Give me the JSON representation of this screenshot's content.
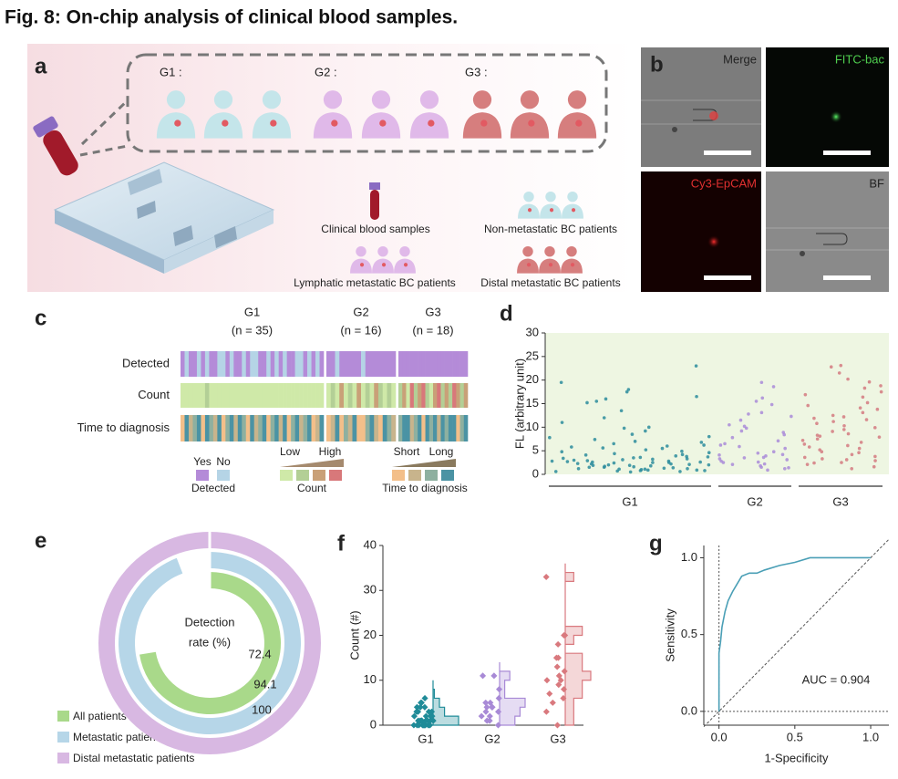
{
  "title": "Fig. 8: On-chip analysis of clinical blood samples.",
  "panel_a": {
    "label": "a",
    "groups": [
      "G1 :",
      "G2 :",
      "G3 :"
    ],
    "legend": [
      "Clinical blood samples",
      "Non-metastatic BC patients",
      "Lymphatic metastatic BC patients",
      "Distal metastatic BC patients"
    ]
  },
  "panel_b": {
    "label": "b",
    "channels": [
      "Merge",
      "FITC-bac",
      "Cy3-EpCAM",
      "BF"
    ]
  },
  "panel_c": {
    "label": "c",
    "groups": [
      {
        "name": "G1",
        "n": "(n = 35)"
      },
      {
        "name": "G2",
        "n": "(n = 16)"
      },
      {
        "name": "G3",
        "n": "(n = 18)"
      }
    ],
    "rows": [
      "Detected",
      "Count",
      "Time to diagnosis"
    ],
    "detected_colors": [
      "#b5d4e6",
      "#b48bd8"
    ],
    "count_colors": [
      "#cfe9a8",
      "#b3cf96",
      "#c9a078",
      "#d8787a"
    ],
    "time_colors": [
      "#f3bf8a",
      "#c8b48c",
      "#8eb0a0",
      "#4b93a4"
    ],
    "detected": [
      [
        1,
        0,
        1,
        1,
        0,
        1,
        0,
        1,
        1,
        0,
        0,
        1,
        0,
        1,
        1,
        0,
        1,
        0,
        0,
        1,
        1,
        0,
        1,
        0,
        1,
        0,
        1,
        1,
        0,
        0,
        1,
        0,
        1,
        0,
        1
      ],
      [
        1,
        1,
        0,
        1,
        1,
        1,
        1,
        1,
        0,
        1,
        1,
        1,
        1,
        1,
        1,
        1
      ],
      [
        1,
        1,
        1,
        1,
        1,
        1,
        1,
        1,
        1,
        1,
        1,
        1,
        1,
        1,
        1,
        1,
        1,
        1
      ]
    ],
    "count": [
      [
        0,
        0,
        0,
        0,
        0,
        0,
        1,
        0,
        0,
        0,
        0,
        0,
        0,
        0,
        0,
        0,
        0,
        0,
        0,
        0,
        0,
        0,
        0,
        0,
        0,
        0,
        0,
        0,
        0,
        0,
        0,
        0,
        0,
        0,
        0
      ],
      [
        0,
        1,
        0,
        2,
        0,
        1,
        0,
        2,
        0,
        1,
        0,
        2,
        1,
        0,
        1,
        0
      ],
      [
        1,
        2,
        0,
        3,
        1,
        2,
        3,
        1,
        0,
        2,
        3,
        1,
        2,
        1,
        3,
        2,
        1,
        2
      ]
    ],
    "time": [
      [
        0,
        3,
        1,
        2,
        3,
        0,
        3,
        2,
        1,
        3,
        0,
        2,
        3,
        1,
        3,
        2,
        0,
        3,
        1,
        2,
        3,
        0,
        2,
        3,
        1,
        3,
        0,
        2,
        3,
        1,
        2,
        3,
        0,
        1,
        3
      ],
      [
        0,
        1,
        3,
        0,
        2,
        1,
        3,
        0,
        0,
        2,
        3,
        1,
        0,
        3,
        2,
        1
      ],
      [
        2,
        3,
        3,
        1,
        2,
        3,
        0,
        3,
        2,
        3,
        1,
        3,
        2,
        3,
        3,
        0,
        2,
        3
      ]
    ],
    "legend": {
      "detected": {
        "title": "Detected",
        "items": [
          "Yes",
          "No"
        ]
      },
      "count": {
        "title": "Count",
        "low": "Low",
        "high": "High"
      },
      "time": {
        "title": "Time to diagnosis",
        "short": "Short",
        "long": "Long"
      }
    }
  },
  "chart_data": [
    {
      "type": "scatter",
      "label": "d",
      "y_label": "FL (arbitrary unit)",
      "background": "#eef6e2",
      "ylim": [
        0,
        30
      ],
      "yticks": [
        0,
        5,
        10,
        15,
        20,
        25,
        30
      ],
      "series": [
        {
          "name": "G1",
          "color": "#2b8c9c",
          "values": [
            1.2,
            2.5,
            0.8,
            3.1,
            1.9,
            4.2,
            2.2,
            0.5,
            1.6,
            3.5,
            2.8,
            1.1,
            0.9,
            2.4,
            3.8,
            1.5,
            0.7,
            2.9,
            4.6,
            1.3,
            2.1,
            3.3,
            0.6,
            1.8,
            2.6,
            4.1,
            1.4,
            3.0,
            0.9,
            2.3,
            1.7,
            3.6,
            2.0,
            4.4,
            1.0,
            2.7,
            3.2,
            0.8,
            1.5,
            2.2,
            3.9,
            1.2,
            2.5,
            4.8,
            1.9,
            0.6,
            2.8,
            3.4,
            1.1,
            2.0,
            23,
            17.5,
            16,
            18,
            19.5,
            16.5,
            15.5,
            12,
            10,
            9.2,
            8.5,
            7.4,
            6.8,
            6.2,
            5.8,
            5.5,
            11,
            8,
            7,
            6.5,
            5.2,
            13.5,
            9.8,
            7.8,
            6,
            5.6,
            15.2,
            4.9,
            3.7,
            2.6
          ]
        },
        {
          "name": "G2",
          "color": "#a98bd8",
          "values": [
            1.5,
            2.8,
            3.5,
            4.2,
            2.1,
            1.2,
            3.9,
            4.8,
            2.5,
            0.9,
            3.1,
            1.8,
            4.5,
            2.2,
            3.6,
            1.4,
            5.5,
            6.2,
            7.1,
            8.4,
            9.2,
            10.5,
            12.3,
            13.1,
            14.8,
            16.2,
            18.6,
            19.5,
            11.5,
            7.8,
            6.5,
            9.8,
            8.9,
            12.8,
            5.9,
            4.1,
            3.3,
            2.6,
            15.5,
            10.2
          ]
        },
        {
          "name": "G3",
          "color": "#d47a80",
          "values": [
            1.2,
            2.5,
            3.8,
            4.6,
            2.1,
            3.3,
            1.6,
            4.2,
            2.9,
            3.6,
            5.8,
            6.4,
            7.2,
            8.1,
            9.5,
            10.3,
            11.2,
            12.5,
            13.8,
            14.6,
            15.2,
            16.4,
            17.5,
            18.3,
            19.6,
            20.2,
            22.8,
            23.1,
            21.5,
            6.8,
            7.5,
            8.6,
            9.1,
            10.8,
            11.6,
            12.2,
            13.1,
            5.2,
            4.8,
            6.1,
            7.9,
            9.9,
            14.1,
            16.9,
            18.8,
            3.1,
            2.4,
            5.5,
            8.3,
            11.9
          ]
        }
      ]
    },
    {
      "type": "donut",
      "label": "e",
      "center_text": [
        "Detection",
        "rate (%)"
      ],
      "series": [
        {
          "name": "All patients",
          "color": "#a9d98a",
          "value": 72.4
        },
        {
          "name": "Metastatic patients",
          "color": "#b6d6e8",
          "value": 94.1
        },
        {
          "name": "Distal metastatic patients",
          "color": "#d8b8e2",
          "value": 100
        }
      ]
    },
    {
      "type": "strip",
      "label": "f",
      "y_label": "Count (#)",
      "ylim": [
        0,
        40
      ],
      "yticks": [
        0,
        10,
        20,
        30,
        40
      ],
      "series": [
        {
          "name": "G1",
          "color": "#1f8b98",
          "values": [
            0,
            0,
            0,
            0,
            0,
            0,
            0,
            0,
            0,
            0,
            0,
            0,
            1,
            1,
            1,
            1,
            1,
            1,
            1,
            1,
            2,
            2,
            2,
            2,
            2,
            3,
            3,
            3,
            3,
            4,
            4,
            4,
            5,
            5,
            6
          ]
        },
        {
          "name": "G2",
          "color": "#a88ad6",
          "values": [
            0,
            1,
            1,
            2,
            2,
            3,
            3,
            4,
            4,
            4,
            5,
            5,
            6,
            8,
            11,
            11
          ]
        },
        {
          "name": "G3",
          "color": "#d9797e",
          "values": [
            0,
            3,
            5,
            6,
            7,
            8,
            9,
            10,
            10,
            11,
            12,
            13,
            15,
            15,
            18,
            20,
            20,
            33
          ]
        }
      ]
    },
    {
      "type": "line",
      "label": "g",
      "x_label": "1-Specificity",
      "y_label": "Sensitivity",
      "annotation": "AUC = 0.904",
      "color": "#4a9fb6",
      "xlim": [
        -0.1,
        1.12
      ],
      "ylim": [
        -0.09,
        1.08
      ],
      "xticks": [
        {
          "value": 0,
          "label": "0.0"
        },
        0.5,
        {
          "value": 1,
          "label": "1.0"
        }
      ],
      "yticks": [
        {
          "value": 0,
          "label": "0.0"
        },
        0.5,
        {
          "value": 1,
          "label": "1.0"
        }
      ],
      "x": [
        0,
        0,
        0.01,
        0.02,
        0.04,
        0.06,
        0.09,
        0.12,
        0.15,
        0.2,
        0.25,
        0.3,
        0.4,
        0.5,
        0.6,
        0.8,
        1.0
      ],
      "values": [
        0,
        0.38,
        0.45,
        0.55,
        0.65,
        0.72,
        0.78,
        0.83,
        0.88,
        0.9,
        0.9,
        0.92,
        0.95,
        0.97,
        1,
        1,
        1
      ]
    }
  ]
}
